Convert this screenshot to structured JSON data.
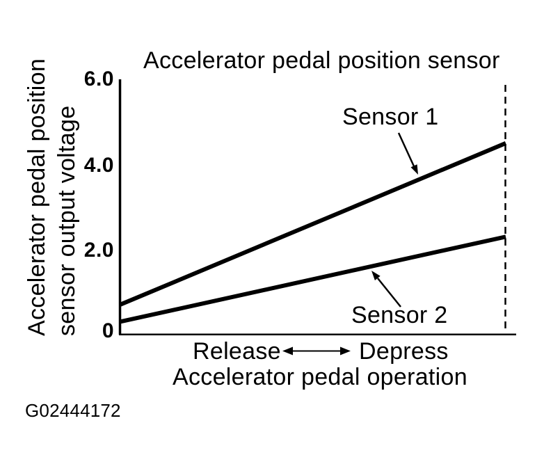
{
  "figure_id": "G02444172",
  "title": "Accelerator pedal position sensor",
  "y_axis": {
    "label_line1": "Accelerator pedal position",
    "label_line2": "sensor output voltage",
    "ticks": [
      "6.0",
      "4.0",
      "2.0",
      "0"
    ]
  },
  "x_axis": {
    "left_term": "Release",
    "right_term": "Depress",
    "label": "Accelerator pedal operation"
  },
  "annotations": {
    "sensor1": "Sensor 1",
    "sensor2": "Sensor 2"
  },
  "colors": {
    "ink": "#000000",
    "paper": "#ffffff"
  },
  "chart_data": {
    "type": "line",
    "title": "Accelerator pedal position sensor",
    "xlabel": "Accelerator pedal operation",
    "x_direction_labels": {
      "left": "Release",
      "right": "Depress"
    },
    "ylabel": "Accelerator pedal position sensor output voltage",
    "ylim": [
      0,
      6.0
    ],
    "yticks": [
      0,
      2.0,
      4.0,
      6.0
    ],
    "ytick_labels": [
      "0",
      "2.0",
      "4.0",
      "6.0"
    ],
    "x": [
      "pedal fully released",
      "pedal fully depressed"
    ],
    "series": [
      {
        "name": "Sensor 1",
        "values": [
          0.7,
          4.5
        ]
      },
      {
        "name": "Sensor 2",
        "values": [
          0.3,
          2.3
        ]
      }
    ],
    "grid": false,
    "legend_position": "inline-annotations",
    "annotations": [
      {
        "text": "Sensor 1",
        "points_to": "upper line"
      },
      {
        "text": "Sensor 2",
        "points_to": "lower line"
      }
    ],
    "full_depression_marker": "dashed vertical line at right end of both lines"
  }
}
